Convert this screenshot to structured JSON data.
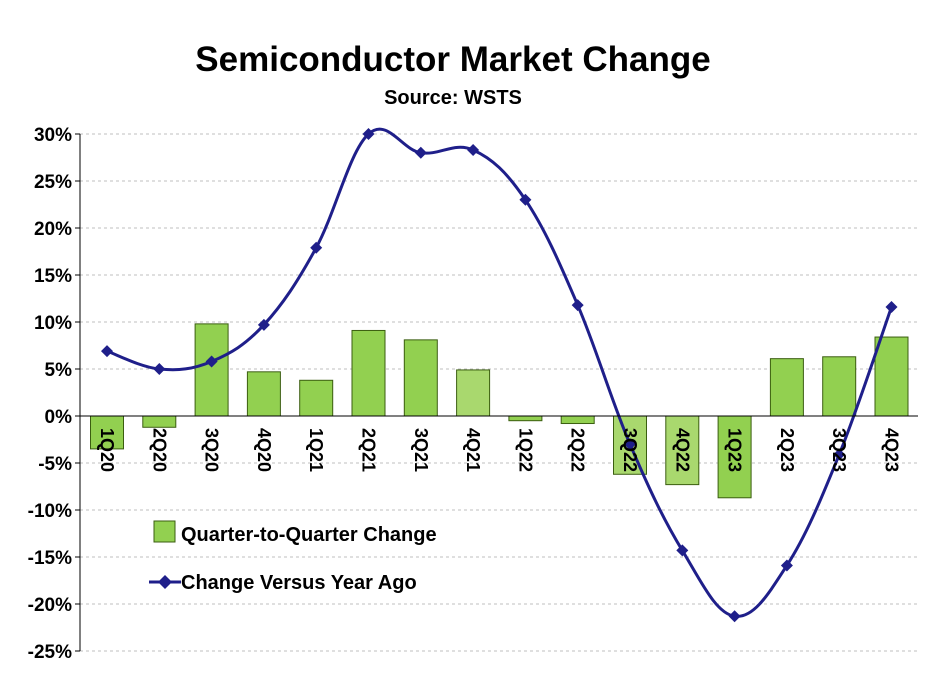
{
  "chart_data": {
    "type": "bar+line",
    "title": "Semiconductor Market Change",
    "subtitle": "Source: WSTS",
    "categories": [
      "1Q20",
      "2Q20",
      "3Q20",
      "4Q20",
      "1Q21",
      "2Q21",
      "3Q21",
      "4Q21",
      "1Q22",
      "2Q22",
      "3Q22",
      "4Q22",
      "1Q23",
      "2Q23",
      "3Q23",
      "4Q23"
    ],
    "series": [
      {
        "name": "Quarter-to-Quarter Change",
        "kind": "bar",
        "values": [
          -3.5,
          -1.2,
          9.8,
          4.7,
          3.8,
          9.1,
          8.1,
          4.9,
          -0.5,
          -0.8,
          -6.2,
          -7.3,
          -8.7,
          6.1,
          6.3,
          8.4
        ]
      },
      {
        "name": "Change Versus Year Ago",
        "kind": "line",
        "values": [
          6.9,
          5.0,
          5.8,
          9.7,
          17.9,
          30.0,
          28.0,
          28.3,
          23.0,
          11.8,
          -3.0,
          -14.3,
          -21.3,
          -15.9,
          -4.1,
          11.6
        ]
      }
    ],
    "ylim": [
      -25,
      30
    ],
    "yticks": [
      30,
      25,
      20,
      15,
      10,
      5,
      0,
      -5,
      -10,
      -15,
      -20,
      -25
    ],
    "ytick_labels": [
      "30%",
      "25%",
      "20%",
      "15%",
      "10%",
      "5%",
      "0%",
      "-5%",
      "-10%",
      "-15%",
      "-20%",
      "-25%"
    ],
    "grid": true,
    "legend_position": "lower-left",
    "colors": {
      "bar_fill": "#92d050",
      "bar_fill_light": "#a9d86e",
      "bar_stroke": "#3b5e10",
      "line": "#1f1f8a",
      "grid": "#bfbfbf"
    }
  }
}
